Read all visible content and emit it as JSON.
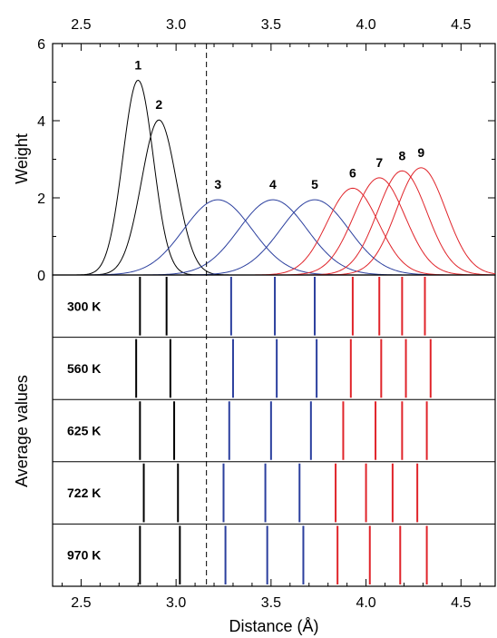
{
  "chart_data": {
    "type": "line",
    "xlabel": "Distance (Å)",
    "xlim": [
      2.35,
      4.68
    ],
    "x_ticks": [
      "2.5",
      "3.0",
      "3.5",
      "4.0",
      "4.5"
    ],
    "x_tick_values": [
      2.5,
      3.0,
      3.5,
      4.0,
      4.5
    ],
    "top_panel": {
      "ylabel": "Weight",
      "ylim": [
        0,
        6
      ],
      "y_ticks": [
        "0",
        "2",
        "4",
        "6"
      ],
      "y_tick_values": [
        0,
        2,
        4,
        6
      ],
      "cutoff_line_x": 3.16,
      "peaks": [
        {
          "label": "1",
          "center": 2.8,
          "height": 5.05,
          "width": 0.08,
          "color": "#000000"
        },
        {
          "label": "2",
          "center": 2.91,
          "height": 4.02,
          "width": 0.092,
          "color": "#000000"
        },
        {
          "label": "3",
          "center": 3.22,
          "height": 1.95,
          "width": 0.18,
          "color": "#2b3f9e"
        },
        {
          "label": "4",
          "center": 3.51,
          "height": 1.95,
          "width": 0.18,
          "color": "#2b3f9e"
        },
        {
          "label": "5",
          "center": 3.73,
          "height": 1.95,
          "width": 0.18,
          "color": "#2b3f9e"
        },
        {
          "label": "6",
          "center": 3.93,
          "height": 2.25,
          "width": 0.135,
          "color": "#e0242a"
        },
        {
          "label": "7",
          "center": 4.07,
          "height": 2.52,
          "width": 0.135,
          "color": "#e0242a"
        },
        {
          "label": "8",
          "center": 4.19,
          "height": 2.7,
          "width": 0.13,
          "color": "#e0242a"
        },
        {
          "label": "9",
          "center": 4.29,
          "height": 2.78,
          "width": 0.13,
          "color": "#e0242a"
        }
      ]
    },
    "bottom_panel": {
      "ylabel": "Average values",
      "group_colors": [
        "#000000",
        "#000000",
        "#2b3f9e",
        "#2b3f9e",
        "#2b3f9e",
        "#e0242a",
        "#e0242a",
        "#e0242a",
        "#e0242a"
      ],
      "rows": [
        {
          "label": "300 K",
          "values": [
            2.81,
            2.95,
            3.29,
            3.52,
            3.73,
            3.93,
            4.07,
            4.19,
            4.31
          ]
        },
        {
          "label": "560 K",
          "values": [
            2.79,
            2.97,
            3.3,
            3.53,
            3.74,
            3.92,
            4.08,
            4.21,
            4.34
          ]
        },
        {
          "label": "625 K",
          "values": [
            2.81,
            2.99,
            3.28,
            3.5,
            3.71,
            3.88,
            4.05,
            4.19,
            4.32
          ]
        },
        {
          "label": "722 K",
          "values": [
            2.83,
            3.01,
            3.25,
            3.47,
            3.65,
            3.84,
            4.0,
            4.14,
            4.27
          ]
        },
        {
          "label": "970 K",
          "values": [
            2.81,
            3.02,
            3.26,
            3.48,
            3.67,
            3.85,
            4.02,
            4.18,
            4.32
          ]
        }
      ]
    }
  }
}
